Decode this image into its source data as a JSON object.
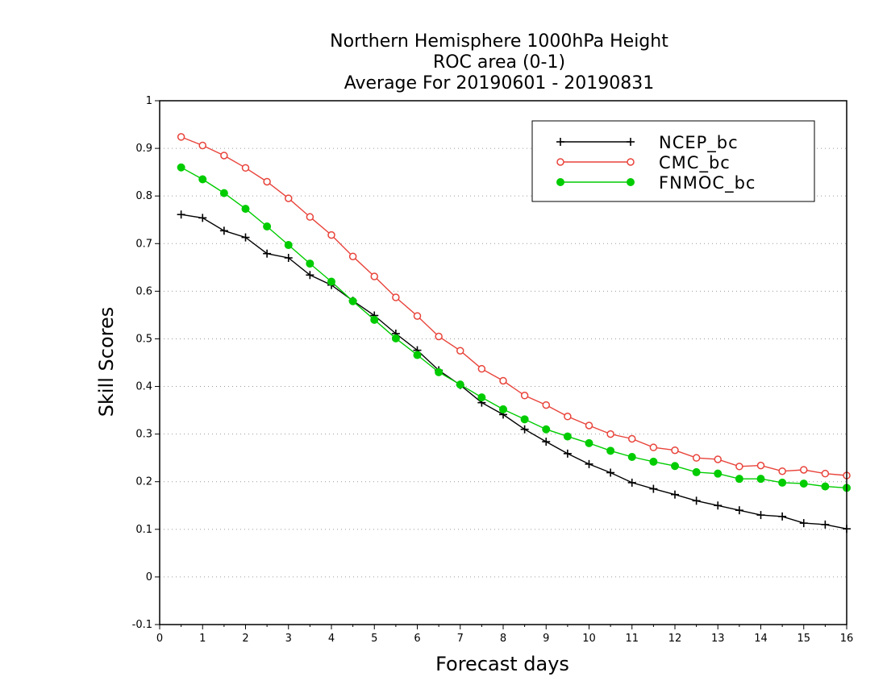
{
  "chart_data": {
    "type": "line",
    "title": [
      "Northern Hemisphere 1000hPa Height",
      "ROC area (0-1)",
      "Average For 20190601 - 20190831"
    ],
    "xlabel": "Forecast days",
    "ylabel": "Skill Scores",
    "xlim": [
      0,
      16
    ],
    "ylim": [
      -0.1,
      1
    ],
    "xticks": [
      "0",
      "1",
      "2",
      "3",
      "4",
      "5",
      "6",
      "7",
      "8",
      "9",
      "10",
      "11",
      "12",
      "13",
      "14",
      "15",
      "16"
    ],
    "yticks": [
      "-0.1",
      "0",
      "0.1",
      "0.2",
      "0.3",
      "0.4",
      "0.5",
      "0.6",
      "0.7",
      "0.8",
      "0.9",
      "1"
    ],
    "grid": "dotted-horizontal",
    "legend_position": "top-right",
    "x": [
      0.5,
      1,
      1.5,
      2,
      2.5,
      3,
      3.5,
      4,
      4.5,
      5,
      5.5,
      6,
      6.5,
      7,
      7.5,
      8,
      8.5,
      9,
      9.5,
      10,
      10.5,
      11,
      11.5,
      12,
      12.5,
      13,
      13.5,
      14,
      14.5,
      15,
      15.5,
      16
    ],
    "series": [
      {
        "name": "NCEP_bc",
        "color": "#000000",
        "marker": "plus",
        "values": [
          0.761,
          0.754,
          0.727,
          0.713,
          0.679,
          0.67,
          0.634,
          0.613,
          0.58,
          0.549,
          0.511,
          0.476,
          0.434,
          0.403,
          0.366,
          0.341,
          0.31,
          0.284,
          0.259,
          0.237,
          0.219,
          0.198,
          0.185,
          0.173,
          0.16,
          0.15,
          0.14,
          0.13,
          0.127,
          0.113,
          0.11,
          0.101
        ]
      },
      {
        "name": "CMC_bc",
        "color": "#e8433a",
        "marker": "open-circle",
        "values": [
          0.924,
          0.906,
          0.885,
          0.859,
          0.83,
          0.795,
          0.756,
          0.718,
          0.673,
          0.631,
          0.587,
          0.548,
          0.505,
          0.475,
          0.437,
          0.412,
          0.381,
          0.361,
          0.337,
          0.318,
          0.3,
          0.29,
          0.272,
          0.266,
          0.25,
          0.247,
          0.232,
          0.234,
          0.222,
          0.225,
          0.217,
          0.213
        ]
      },
      {
        "name": "FNMOC_bc",
        "color": "#00cc00",
        "marker": "filled-circle",
        "values": [
          0.86,
          0.835,
          0.806,
          0.773,
          0.736,
          0.697,
          0.658,
          0.62,
          0.579,
          0.54,
          0.501,
          0.466,
          0.43,
          0.404,
          0.377,
          0.352,
          0.331,
          0.31,
          0.295,
          0.281,
          0.265,
          0.252,
          0.242,
          0.233,
          0.22,
          0.217,
          0.206,
          0.206,
          0.198,
          0.196,
          0.19,
          0.187
        ]
      }
    ]
  }
}
